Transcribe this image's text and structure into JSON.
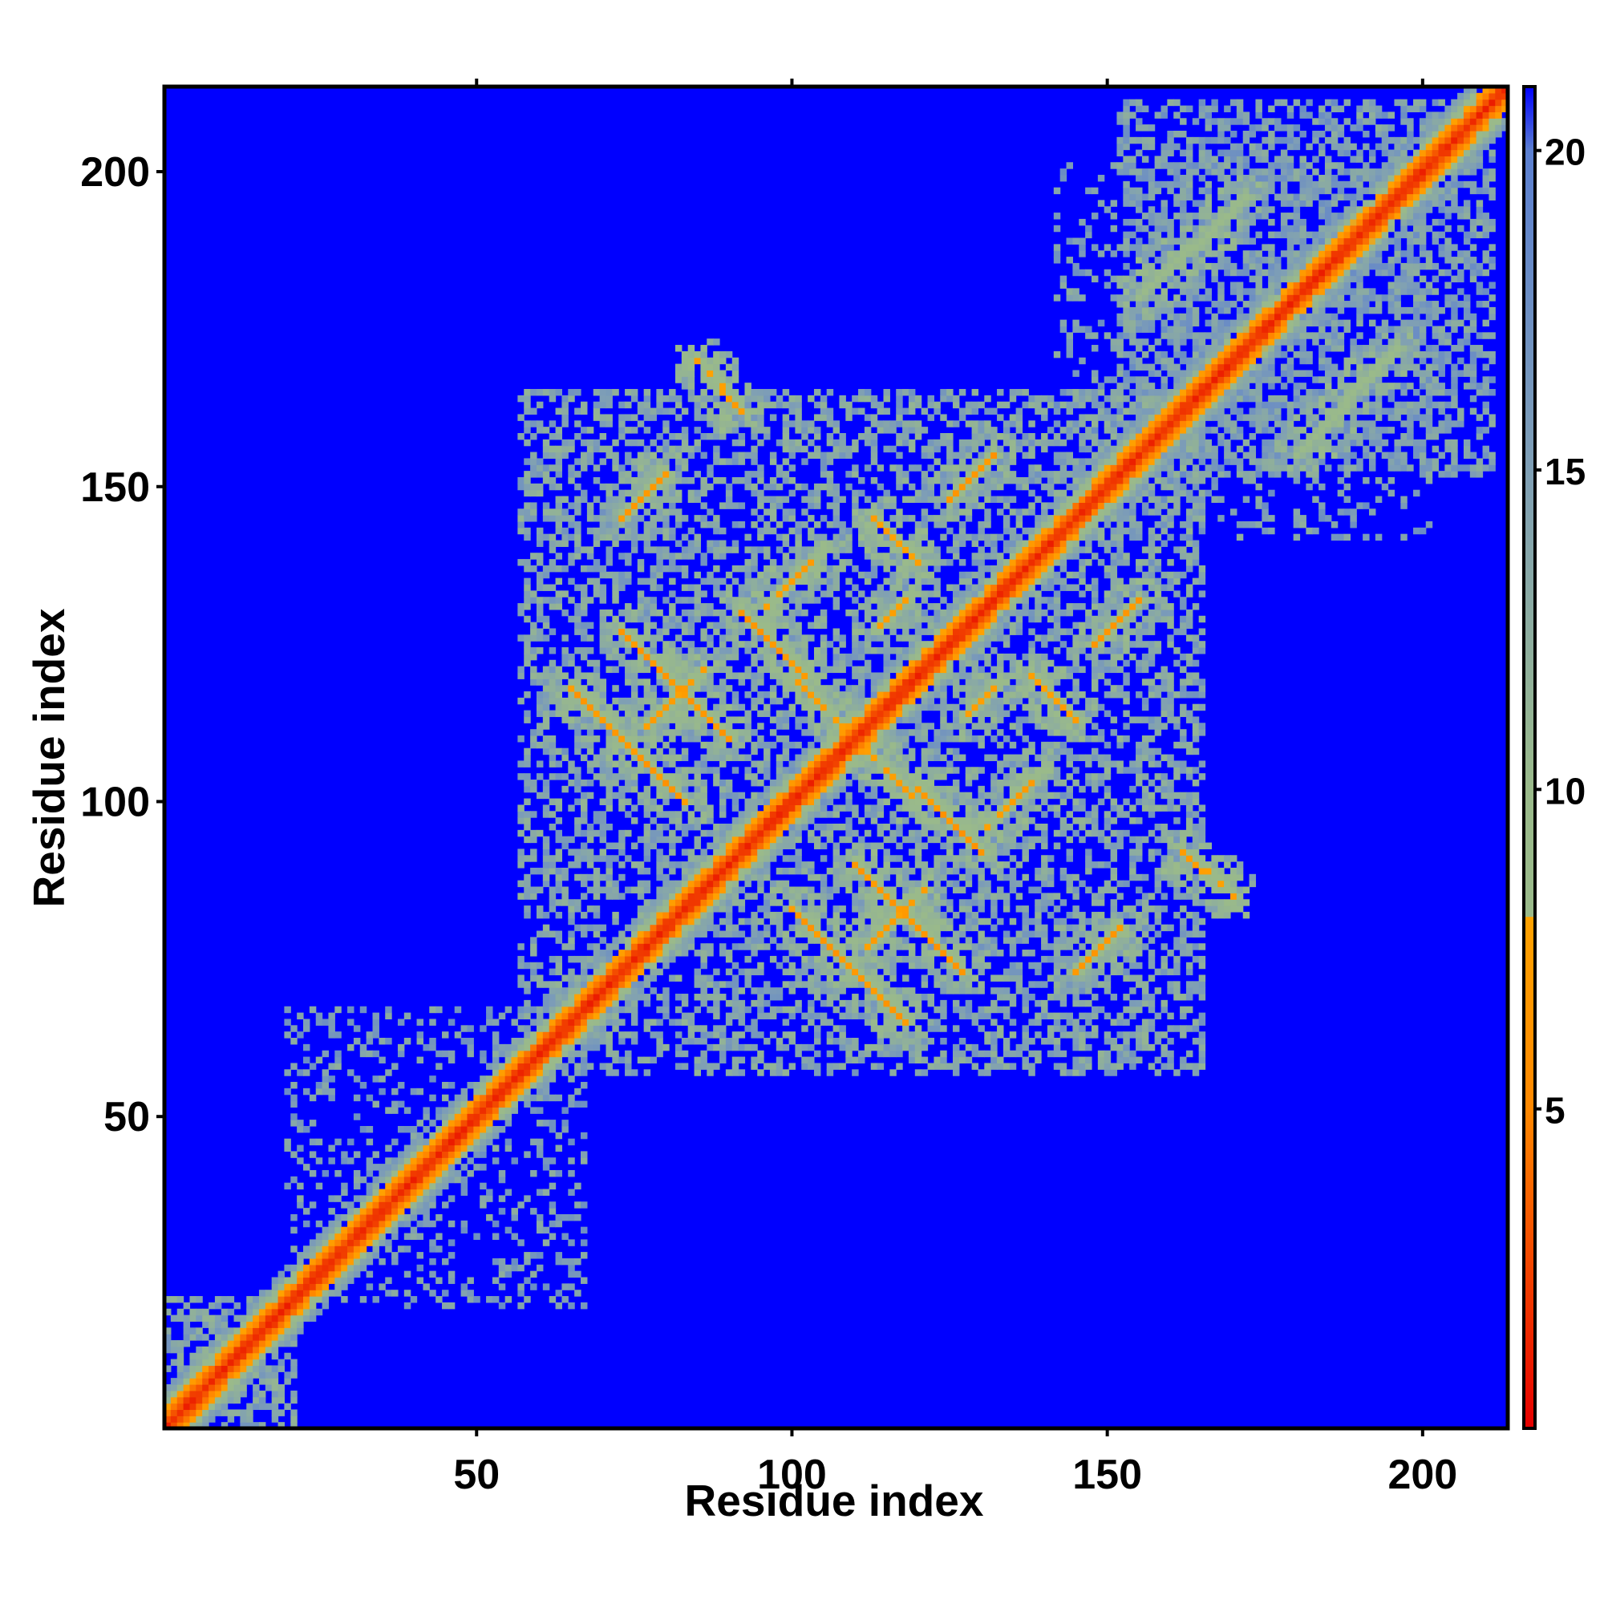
{
  "chart_data": {
    "type": "heatmap",
    "title": "",
    "xlabel": "Residue index",
    "ylabel": "Residue index",
    "xlim": [
      1,
      213
    ],
    "ylim": [
      1,
      213
    ],
    "x_ticks": [
      50,
      100,
      150,
      200
    ],
    "y_ticks": [
      50,
      100,
      150,
      200
    ],
    "x_tick_labels": [
      "50",
      "100",
      "150",
      "200"
    ],
    "y_tick_labels": [
      "50",
      "100",
      "150",
      "200"
    ],
    "colorbar": {
      "range": [
        0,
        21
      ],
      "ticks": [
        5,
        10,
        15,
        20
      ],
      "tick_labels": [
        "5",
        "10",
        "15",
        "20"
      ],
      "stops": [
        {
          "value": 0,
          "color": "#e60000"
        },
        {
          "value": 5,
          "color": "#ff8800"
        },
        {
          "value": 8,
          "color": "#ffa200"
        },
        {
          "value": 8.01,
          "color": "#9aba8a"
        },
        {
          "value": 10,
          "color": "#9aba8a"
        },
        {
          "value": 15,
          "color": "#7f9fb5"
        },
        {
          "value": 20,
          "color": "#5b7fd0"
        },
        {
          "value": 21,
          "color": "#0000ff"
        }
      ]
    },
    "background_color": "#0000ff",
    "matrix_size": 213,
    "symmetric": true,
    "diagonal_band": [
      {
        "offset": 0,
        "value": 1
      },
      {
        "offset": 1,
        "value": 2
      },
      {
        "offset": 2,
        "value": 4
      },
      {
        "offset": 3,
        "value": 7
      },
      {
        "offset": 4,
        "value": 10
      },
      {
        "offset": 5,
        "value": 13
      },
      {
        "offset": 6,
        "value": 15
      }
    ],
    "domains": [
      {
        "start": 1,
        "end": 21,
        "value": 11,
        "density": 0.55
      },
      {
        "start": 20,
        "end": 67,
        "value": 12,
        "density": 0.25
      },
      {
        "start": 57,
        "end": 165,
        "value": 11,
        "density": 0.46
      },
      {
        "start": 142,
        "end": 201,
        "value": 12,
        "density": 0.22
      },
      {
        "start": 152,
        "end": 211,
        "value": 12,
        "density": 0.52
      }
    ],
    "contact_strands": [
      {
        "i": [
          65,
          83
        ],
        "j": [
          100,
          118
        ],
        "direction": "anti",
        "value": 6
      },
      {
        "i": [
          73,
          90
        ],
        "j": [
          110,
          127
        ],
        "direction": "anti",
        "value": 6
      },
      {
        "i": [
          77,
          86
        ],
        "j": [
          112,
          121
        ],
        "direction": "parallel",
        "value": 7
      },
      {
        "i": [
          96,
          105
        ],
        "j": [
          131,
          140
        ],
        "direction": "parallel",
        "value": 7
      },
      {
        "i": [
          100,
          110
        ],
        "j": [
          110,
          120
        ],
        "direction": "anti",
        "value": 7
      },
      {
        "i": [
          92,
          102
        ],
        "j": [
          120,
          130
        ],
        "direction": "anti",
        "value": 6
      },
      {
        "i": [
          73,
          80
        ],
        "j": [
          145,
          152
        ],
        "direction": "parallel",
        "value": 6
      },
      {
        "i": [
          125,
          132
        ],
        "j": [
          148,
          155
        ],
        "direction": "parallel",
        "value": 6
      },
      {
        "i": [
          85,
          92
        ],
        "j": [
          162,
          170
        ],
        "direction": "anti",
        "value": 7
      },
      {
        "i": [
          113,
          120
        ],
        "j": [
          138,
          145
        ],
        "direction": "anti",
        "value": 7
      },
      {
        "i": [
          127,
          133
        ],
        "j": [
          113,
          119
        ],
        "direction": "parallel",
        "value": 7
      },
      {
        "i": [
          155,
          172
        ],
        "j": [
          180,
          196
        ],
        "direction": "parallel",
        "value": 8
      }
    ]
  }
}
